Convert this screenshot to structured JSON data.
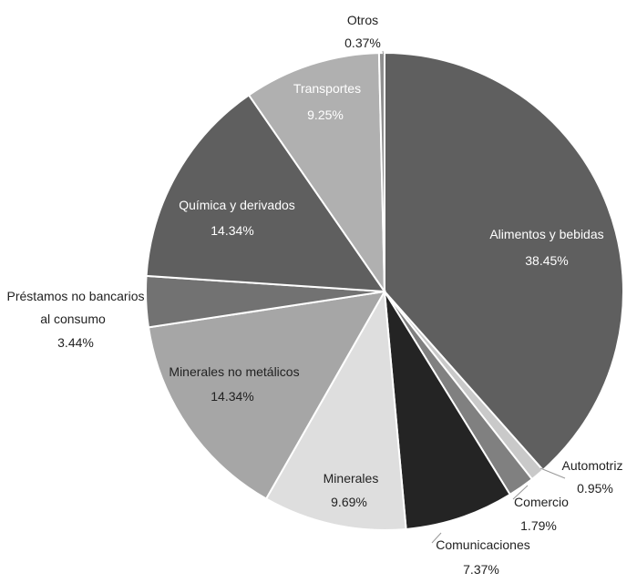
{
  "chart_data": {
    "type": "pie",
    "title": "",
    "slices": [
      {
        "label": "Alimentos y bebidas",
        "value": 38.45,
        "value_label": "38.45%",
        "color": "#5f5f5f"
      },
      {
        "label": "Automotriz",
        "value": 0.95,
        "value_label": "0.95%",
        "color": "#c9c9c9"
      },
      {
        "label": "Comercio",
        "value": 1.79,
        "value_label": "1.79%",
        "color": "#808080"
      },
      {
        "label": "Comunicaciones",
        "value": 7.37,
        "value_label": "7.37%",
        "color": "#242424"
      },
      {
        "label": "Minerales",
        "value": 9.69,
        "value_label": "9.69%",
        "color": "#dedede"
      },
      {
        "label": "Minerales no metálicos",
        "value": 14.34,
        "value_label": "14.34%",
        "color": "#a6a6a6"
      },
      {
        "label": "Préstamos no bancarios al consumo",
        "value": 3.44,
        "value_label": "3.44%",
        "color": "#727272"
      },
      {
        "label": "Química y derivados",
        "value": 14.34,
        "value_label": "14.34%",
        "color": "#5f5f5f"
      },
      {
        "label": "Transportes",
        "value": 9.25,
        "value_label": "9.25%",
        "color": "#b0b0b0"
      },
      {
        "label": "Otros",
        "value": 0.37,
        "value_label": "0.37%",
        "color": "#8f8f8f"
      }
    ]
  }
}
